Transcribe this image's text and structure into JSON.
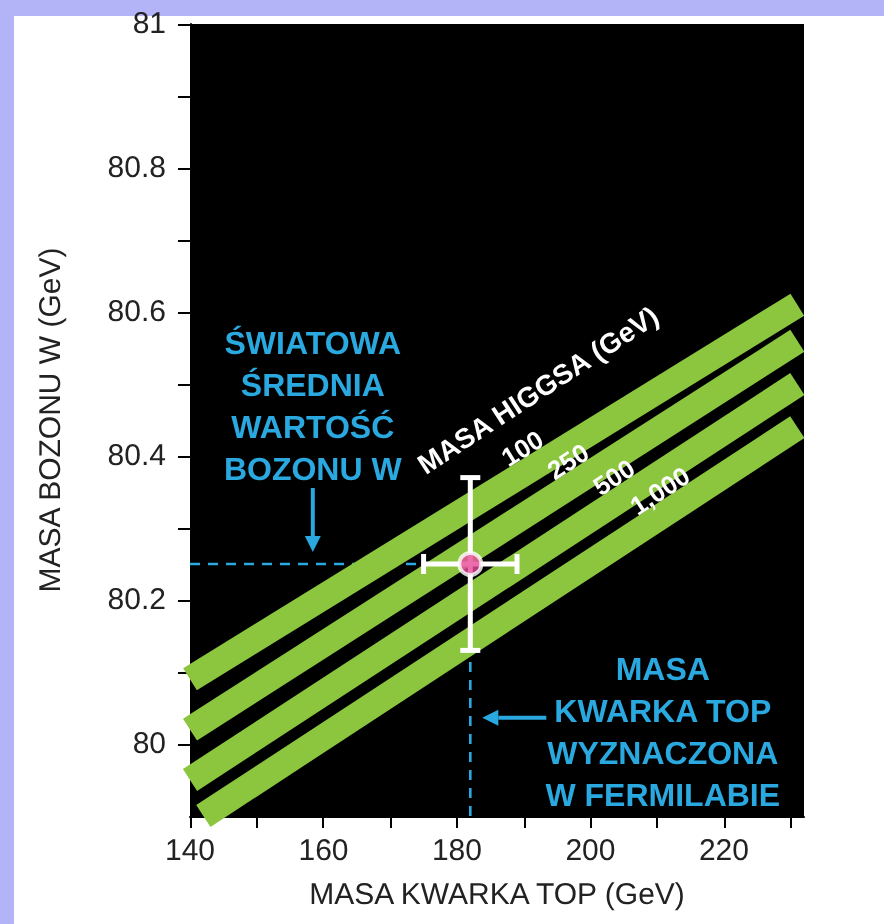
{
  "chart_data": {
    "type": "line",
    "xlabel": "MASA KWARKA TOP (GeV)",
    "ylabel": "MASA BOZONU W (GeV)",
    "legend_title": "MASA HIGGSA (GeV)",
    "xlim": [
      140,
      232
    ],
    "xticks": [
      140,
      160,
      180,
      200,
      220
    ],
    "ylim": [
      79.9,
      81
    ],
    "yticks": [
      80,
      80.2,
      80.4,
      80.6,
      80.8,
      81
    ],
    "legend": false,
    "grid": false,
    "series": [
      {
        "type": "line",
        "name": "100",
        "color": "#8cc63f",
        "x": [
          140,
          231
        ],
        "values": [
          80.09,
          80.61
        ]
      },
      {
        "type": "line",
        "name": "250",
        "color": "#8cc63f",
        "x": [
          140,
          231
        ],
        "values": [
          80.02,
          80.56
        ]
      },
      {
        "type": "line",
        "name": "500",
        "color": "#8cc63f",
        "x": [
          140,
          231
        ],
        "values": [
          79.95,
          80.5
        ]
      },
      {
        "type": "line",
        "name": "1,000",
        "color": "#8cc63f",
        "x": [
          142,
          231
        ],
        "values": [
          79.9,
          80.44
        ]
      },
      {
        "type": "scatter",
        "color": "#e8479a",
        "marker": "circle",
        "x": [
          182
        ],
        "values": [
          80.25
        ],
        "errors": [
          0.12
        ],
        "xerrors": [
          7
        ]
      }
    ],
    "ref_lines": [
      {
        "axis": "y",
        "value": 80.25,
        "color": "#29a9e0",
        "line_style": "dashed"
      },
      {
        "axis": "x",
        "value": 182,
        "color": "#29a9e0",
        "line_style": "dashed"
      }
    ],
    "annotations": [
      "ŚWIATOWA\nŚREDNIA\nWARTOŚĆ\nBOZONU W",
      "MASA\nKWARKA TOP\nWYZNACZONA\nW FERMILABIE"
    ]
  }
}
